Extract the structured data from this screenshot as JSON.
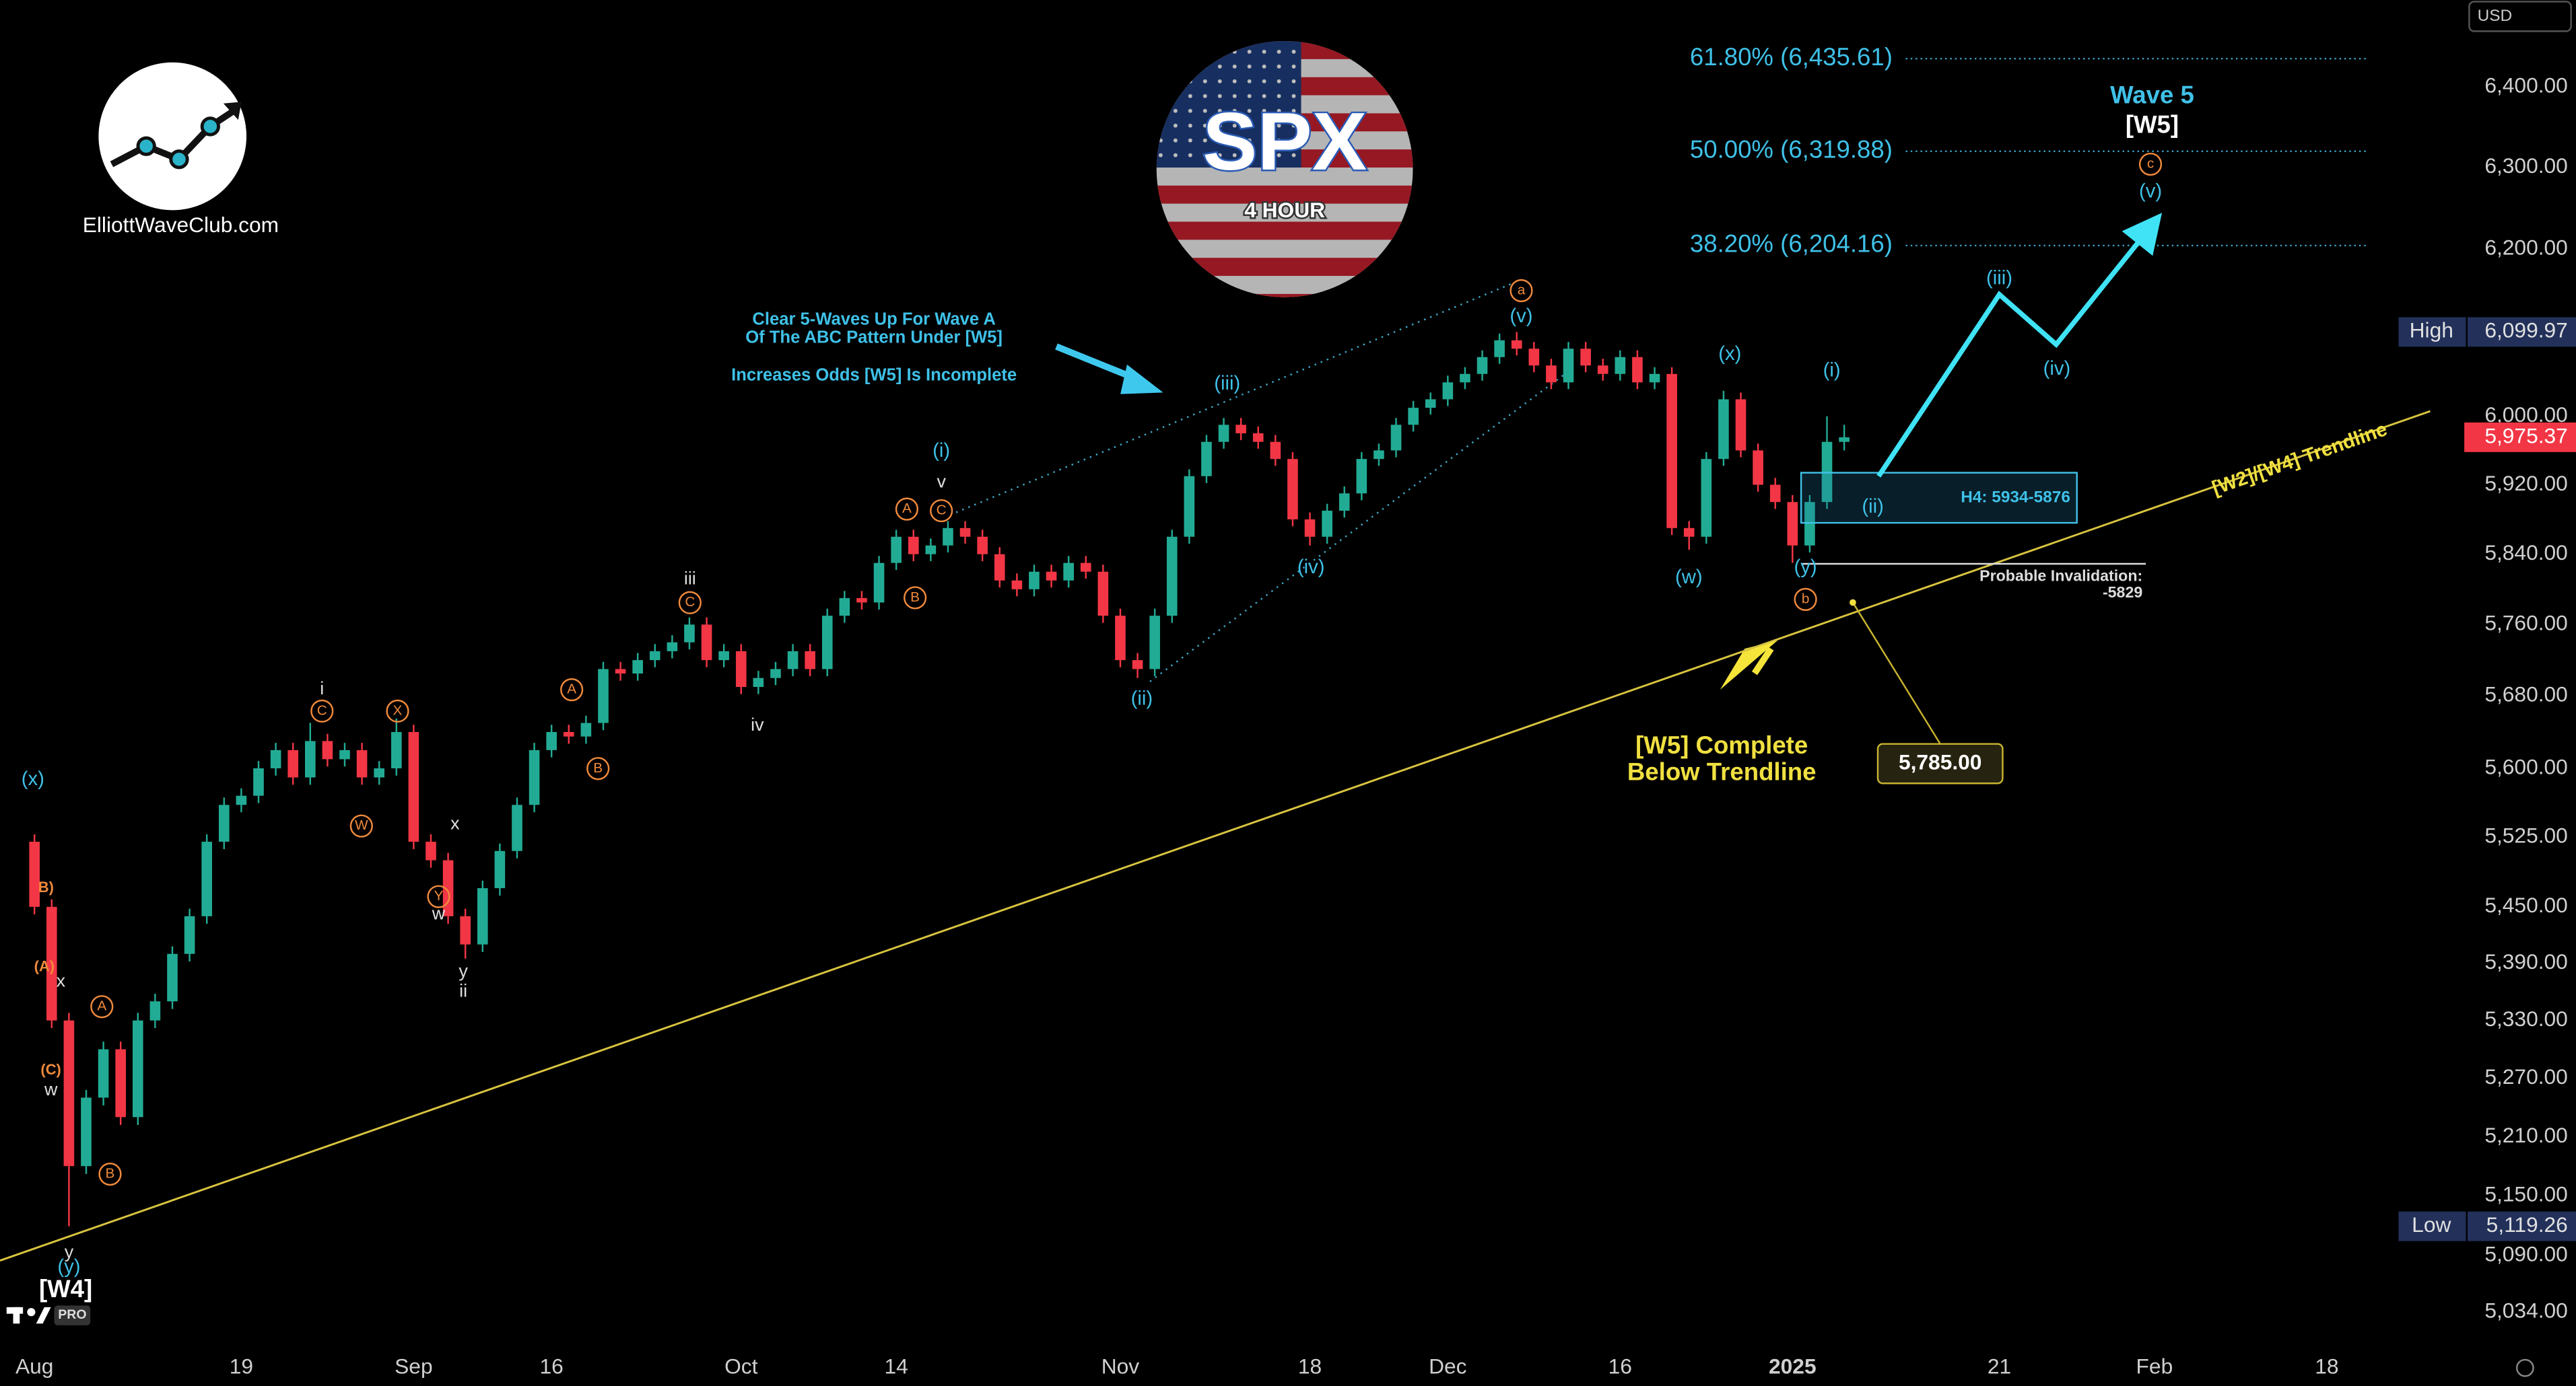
{
  "chart_data": {
    "type": "candlestick",
    "symbol": "SPX",
    "timeframe": "4 HOUR",
    "brand": "ElliottWaveClub.com",
    "currency": "USD",
    "badge": "PRO",
    "log": true,
    "grid": false,
    "colors": {
      "up": "#22ab94",
      "down": "#f23645"
    },
    "xlim": [
      -2,
      140.5
    ],
    "xticks": [
      {
        "value": 0,
        "label": "Aug"
      },
      {
        "value": 12,
        "label": "19"
      },
      {
        "value": 22,
        "label": "Sep"
      },
      {
        "value": 30,
        "label": "16"
      },
      {
        "value": 41,
        "label": "Oct"
      },
      {
        "value": 50,
        "label": "14"
      },
      {
        "value": 63,
        "label": "Nov"
      },
      {
        "value": 74,
        "label": "18"
      },
      {
        "value": 82,
        "label": "Dec"
      },
      {
        "value": 92,
        "label": "16"
      },
      {
        "value": 102,
        "label": "2025"
      },
      {
        "value": 114,
        "label": "21"
      },
      {
        "value": 123,
        "label": "Feb"
      },
      {
        "value": 133,
        "label": "18"
      }
    ],
    "ylim": [
      5000,
      6510
    ],
    "yticks": [
      {
        "value": 6400,
        "label": "6,400.00"
      },
      {
        "value": 6300,
        "label": "6,300.00"
      },
      {
        "value": 6200,
        "label": "6,200.00"
      },
      {
        "value": 6000,
        "label": "6,000.00"
      },
      {
        "value": 5920,
        "label": "5,920.00"
      },
      {
        "value": 5840,
        "label": "5,840.00"
      },
      {
        "value": 5760,
        "label": "5,760.00"
      },
      {
        "value": 5680,
        "label": "5,680.00"
      },
      {
        "value": 5600,
        "label": "5,600.00"
      },
      {
        "value": 5525,
        "label": "5,525.00"
      },
      {
        "value": 5450,
        "label": "5,450.00"
      },
      {
        "value": 5390,
        "label": "5,390.00"
      },
      {
        "value": 5330,
        "label": "5,330.00"
      },
      {
        "value": 5270,
        "label": "5,270.00"
      },
      {
        "value": 5210,
        "label": "5,210.00"
      },
      {
        "value": 5150,
        "label": "5,150.00"
      },
      {
        "value": 5090,
        "label": "5,090.00"
      },
      {
        "value": 5034,
        "label": "5,034.00"
      }
    ],
    "ohlc": [
      [
        5520,
        5528,
        5442,
        5450
      ],
      [
        5450,
        5458,
        5322,
        5330
      ],
      [
        5330,
        5338,
        5119.26,
        5180
      ],
      [
        5180,
        5258,
        5172,
        5250
      ],
      [
        5250,
        5308,
        5242,
        5300
      ],
      [
        5300,
        5308,
        5222,
        5230
      ],
      [
        5230,
        5338,
        5222,
        5330
      ],
      [
        5330,
        5358,
        5322,
        5350
      ],
      [
        5350,
        5408,
        5342,
        5400
      ],
      [
        5400,
        5448,
        5392,
        5440
      ],
      [
        5440,
        5528,
        5432,
        5520
      ],
      [
        5520,
        5568,
        5512,
        5560
      ],
      [
        5560,
        5578,
        5552,
        5570
      ],
      [
        5570,
        5608,
        5562,
        5600
      ],
      [
        5600,
        5628,
        5592,
        5620
      ],
      [
        5620,
        5628,
        5582,
        5590
      ],
      [
        5590,
        5650,
        5582,
        5630
      ],
      [
        5630,
        5638,
        5602,
        5610
      ],
      [
        5610,
        5628,
        5602,
        5620
      ],
      [
        5620,
        5628,
        5582,
        5590
      ],
      [
        5590,
        5608,
        5582,
        5600
      ],
      [
        5600,
        5655,
        5592,
        5640
      ],
      [
        5640,
        5648,
        5512,
        5520
      ],
      [
        5520,
        5528,
        5492,
        5500
      ],
      [
        5500,
        5508,
        5432,
        5440
      ],
      [
        5440,
        5448,
        5395,
        5410
      ],
      [
        5410,
        5478,
        5402,
        5470
      ],
      [
        5470,
        5518,
        5462,
        5510
      ],
      [
        5510,
        5568,
        5502,
        5560
      ],
      [
        5560,
        5628,
        5552,
        5620
      ],
      [
        5620,
        5648,
        5612,
        5640
      ],
      [
        5640,
        5648,
        5627,
        5635
      ],
      [
        5635,
        5658,
        5627,
        5650
      ],
      [
        5650,
        5718,
        5642,
        5710
      ],
      [
        5710,
        5718,
        5697,
        5705
      ],
      [
        5705,
        5728,
        5697,
        5720
      ],
      [
        5720,
        5738,
        5712,
        5730
      ],
      [
        5730,
        5748,
        5722,
        5740
      ],
      [
        5740,
        5768,
        5732,
        5760
      ],
      [
        5760,
        5768,
        5712,
        5720
      ],
      [
        5720,
        5738,
        5712,
        5730
      ],
      [
        5730,
        5738,
        5682,
        5690
      ],
      [
        5690,
        5708,
        5682,
        5700
      ],
      [
        5700,
        5718,
        5692,
        5710
      ],
      [
        5710,
        5738,
        5702,
        5730
      ],
      [
        5730,
        5738,
        5702,
        5710
      ],
      [
        5710,
        5778,
        5702,
        5770
      ],
      [
        5770,
        5798,
        5762,
        5790
      ],
      [
        5790,
        5798,
        5777,
        5785
      ],
      [
        5785,
        5838,
        5777,
        5830
      ],
      [
        5830,
        5868,
        5822,
        5860
      ],
      [
        5860,
        5868,
        5832,
        5840
      ],
      [
        5840,
        5858,
        5832,
        5850
      ],
      [
        5850,
        5878,
        5842,
        5870
      ],
      [
        5870,
        5878,
        5852,
        5860
      ],
      [
        5860,
        5868,
        5832,
        5840
      ],
      [
        5840,
        5848,
        5802,
        5810
      ],
      [
        5810,
        5818,
        5792,
        5800
      ],
      [
        5800,
        5828,
        5792,
        5820
      ],
      [
        5820,
        5828,
        5802,
        5810
      ],
      [
        5810,
        5838,
        5802,
        5830
      ],
      [
        5830,
        5838,
        5812,
        5820
      ],
      [
        5820,
        5828,
        5762,
        5770
      ],
      [
        5770,
        5778,
        5712,
        5720
      ],
      [
        5720,
        5728,
        5700,
        5710
      ],
      [
        5710,
        5778,
        5702,
        5770
      ],
      [
        5770,
        5868,
        5762,
        5860
      ],
      [
        5860,
        5938,
        5852,
        5930
      ],
      [
        5930,
        5978,
        5922,
        5970
      ],
      [
        5970,
        5998,
        5962,
        5990
      ],
      [
        5990,
        5998,
        5972,
        5980
      ],
      [
        5980,
        5988,
        5962,
        5970
      ],
      [
        5970,
        5978,
        5942,
        5950
      ],
      [
        5950,
        5958,
        5872,
        5880
      ],
      [
        5880,
        5888,
        5850,
        5860
      ],
      [
        5860,
        5898,
        5852,
        5890
      ],
      [
        5890,
        5918,
        5882,
        5910
      ],
      [
        5910,
        5958,
        5902,
        5950
      ],
      [
        5950,
        5968,
        5942,
        5960
      ],
      [
        5960,
        5998,
        5952,
        5990
      ],
      [
        5990,
        6018,
        5982,
        6010
      ],
      [
        6010,
        6028,
        6002,
        6020
      ],
      [
        6020,
        6048,
        6012,
        6040
      ],
      [
        6040,
        6058,
        6032,
        6050
      ],
      [
        6050,
        6078,
        6042,
        6070
      ],
      [
        6070,
        6098,
        6062,
        6090
      ],
      [
        6090,
        6099.97,
        6072,
        6080
      ],
      [
        6080,
        6088,
        6052,
        6060
      ],
      [
        6060,
        6068,
        6032,
        6040
      ],
      [
        6040,
        6088,
        6032,
        6080
      ],
      [
        6080,
        6088,
        6052,
        6060
      ],
      [
        6060,
        6068,
        6042,
        6050
      ],
      [
        6050,
        6078,
        6042,
        6070
      ],
      [
        6070,
        6078,
        6032,
        6040
      ],
      [
        6040,
        6058,
        6032,
        6050
      ],
      [
        6050,
        6058,
        5862,
        5870
      ],
      [
        5870,
        5878,
        5845,
        5860
      ],
      [
        5860,
        5958,
        5852,
        5950
      ],
      [
        5950,
        6030,
        5942,
        6020
      ],
      [
        6020,
        6028,
        5952,
        5960
      ],
      [
        5960,
        5968,
        5912,
        5920
      ],
      [
        5920,
        5928,
        5892,
        5900
      ],
      [
        5900,
        5908,
        5830,
        5850
      ],
      [
        5850,
        5908,
        5842,
        5900
      ],
      [
        5900,
        6000,
        5892,
        5970
      ],
      [
        5970,
        5990,
        5960,
        5975.37
      ]
    ],
    "fib_levels": [
      {
        "label": "61.80% (6,435.61)",
        "value": 6435.61
      },
      {
        "label": "50.00% (6,319.88)",
        "value": 6319.88
      },
      {
        "label": "38.20% (6,204.16)",
        "value": 6204.16
      }
    ],
    "high": {
      "label": "High",
      "value": 6099.97,
      "value_label": "6,099.97"
    },
    "low": {
      "label": "Low",
      "value": 5119.26,
      "value_label": "5,119.26"
    },
    "last": {
      "value": 5975.37,
      "value_label": "5,975.37"
    },
    "zone": {
      "label": "H4: 5934-5876",
      "high": 5934,
      "low": 5876,
      "x": [
        102.5,
        118.5
      ]
    },
    "invalidation": {
      "label": "Probable Invalidation:",
      "value": 5829,
      "value_label": "-5829",
      "x": [
        102.5,
        122.5
      ]
    },
    "target": {
      "value": 5785,
      "label": "5,785.00",
      "x": 105.5
    },
    "trendline": {
      "label": "[W2]/[W4] Trendline",
      "x": [
        -2,
        139
      ],
      "y": [
        5085,
        6006
      ]
    },
    "projection": {
      "x": [
        107,
        114,
        117.3,
        122.9
      ],
      "y": [
        5930,
        6145,
        6085,
        6230
      ]
    },
    "wave5": "Wave 5",
    "w5": "[W5]",
    "w4": "[W4]",
    "comment": [
      "Clear 5-Waves Up For Wave A",
      "Of The ABC Pattern Under [W5]",
      "Increases Odds [W5] Is Incomplete"
    ],
    "complete": [
      "[W5] Complete",
      "Below Trendline"
    ],
    "wave_labels": [
      "(x)",
      "y",
      "(y)",
      "B)",
      "(A)",
      "x",
      "A",
      "(C)",
      "w",
      "B",
      "i",
      "C",
      "X",
      "W",
      "x",
      "Y",
      "w",
      "y",
      "ii",
      "A",
      "B",
      "iii",
      "C",
      "iv",
      "A",
      "(i)",
      "v",
      "C",
      "B",
      "(ii)",
      "(iii)",
      "(iv)",
      "a",
      "(v)",
      "(x)",
      "(w)",
      "(y)",
      "b",
      "(i)",
      "(ii)",
      "(iii)",
      "(iv)",
      "c",
      "(v)"
    ]
  }
}
